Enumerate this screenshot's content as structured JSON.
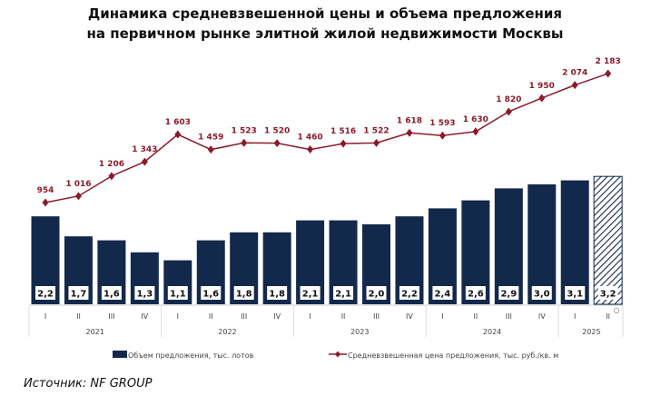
{
  "chart_data": {
    "type": "bar+line",
    "title": [
      "Динамика средневзвешенной цены и объема предложения",
      "на первичном рынке элитной жилой недвижимости Москвы"
    ],
    "quarters": [
      "I",
      "II",
      "III",
      "IV",
      "I",
      "II",
      "III",
      "IV",
      "I",
      "II",
      "III",
      "IV",
      "I",
      "II",
      "III",
      "IV",
      "I",
      "II"
    ],
    "years": [
      {
        "label": "2021",
        "count": 4
      },
      {
        "label": "2022",
        "count": 4
      },
      {
        "label": "2023",
        "count": 4
      },
      {
        "label": "2024",
        "count": 4
      },
      {
        "label": "2025",
        "count": 2
      }
    ],
    "series": [
      {
        "name": "Объем предложения, тыс. лотов",
        "type": "bar",
        "color": "#13294b",
        "values": [
          2.2,
          1.7,
          1.6,
          1.3,
          1.1,
          1.6,
          1.8,
          1.8,
          2.1,
          2.1,
          2.0,
          2.2,
          2.4,
          2.6,
          2.9,
          3.0,
          3.1,
          3.2
        ],
        "labels": [
          "2,2",
          "1,7",
          "1,6",
          "1,3",
          "1,1",
          "1,6",
          "1,8",
          "1,8",
          "2,1",
          "2,1",
          "2,0",
          "2,2",
          "2,4",
          "2,6",
          "2,9",
          "3,0",
          "3,1",
          "3,2"
        ],
        "forecast_last": true
      },
      {
        "name": "Средневзвешенная цена предложения, тыс. руб./кв. м",
        "type": "line",
        "color": "#8b1a2b",
        "values": [
          954,
          1016,
          1206,
          1343,
          1603,
          1459,
          1523,
          1520,
          1460,
          1516,
          1522,
          1618,
          1593,
          1630,
          1820,
          1950,
          2074,
          2183
        ],
        "labels": [
          "954",
          "1 016",
          "1 206",
          "1 343",
          "1 603",
          "1 459",
          "1 523",
          "1 520",
          "1 460",
          "1 516",
          "1 522",
          "1 618",
          "1 593",
          "1 630",
          "1 820",
          "1 950",
          "2 074",
          "2 183"
        ]
      }
    ],
    "footnote_marker": "○",
    "legend_position": "bottom",
    "grid": false
  },
  "source": "Источник: NF GROUP"
}
